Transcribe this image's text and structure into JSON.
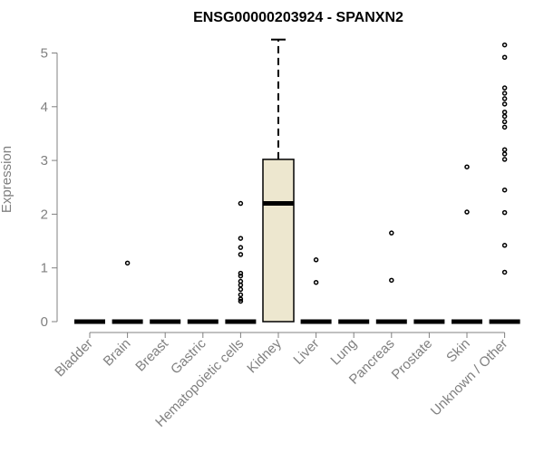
{
  "chart_data": {
    "type": "box",
    "title": "ENSG00000203924 - SPANXN2",
    "xlabel": "",
    "ylabel": "Expression",
    "ylim": [
      0,
      5.25
    ],
    "yticks": [
      "0",
      "1",
      "2",
      "3",
      "4",
      "5"
    ],
    "grid": false,
    "categories": [
      "Bladder",
      "Brain",
      "Breast",
      "Gastric",
      "Hematopoietic cells",
      "Kidney",
      "Liver",
      "Lung",
      "Pancreas",
      "Prostate",
      "Skin",
      "Unknown / Other"
    ],
    "boxes": [
      {
        "q1": 0,
        "median": 0,
        "q3": 0,
        "whisker_low": 0,
        "whisker_high": 0,
        "outliers": []
      },
      {
        "q1": 0,
        "median": 0,
        "q3": 0,
        "whisker_low": 0,
        "whisker_high": 0,
        "outliers": [
          1.09
        ]
      },
      {
        "q1": 0,
        "median": 0,
        "q3": 0,
        "whisker_low": 0,
        "whisker_high": 0,
        "outliers": []
      },
      {
        "q1": 0,
        "median": 0,
        "q3": 0,
        "whisker_low": 0,
        "whisker_high": 0,
        "outliers": []
      },
      {
        "q1": 0,
        "median": 0,
        "q3": 0,
        "whisker_low": 0,
        "whisker_high": 0,
        "outliers": [
          2.2,
          1.55,
          1.38,
          1.25,
          0.9,
          0.85,
          0.75,
          0.68,
          0.6,
          0.5,
          0.42,
          0.38
        ]
      },
      {
        "q1": 0,
        "median": 2.2,
        "q3": 3.02,
        "whisker_low": 0,
        "whisker_high": 5.25,
        "outliers": []
      },
      {
        "q1": 0,
        "median": 0,
        "q3": 0,
        "whisker_low": 0,
        "whisker_high": 0,
        "outliers": [
          1.15,
          0.73
        ]
      },
      {
        "q1": 0,
        "median": 0,
        "q3": 0,
        "whisker_low": 0,
        "whisker_high": 0,
        "outliers": []
      },
      {
        "q1": 0,
        "median": 0,
        "q3": 0,
        "whisker_low": 0,
        "whisker_high": 0,
        "outliers": [
          1.65,
          0.77
        ]
      },
      {
        "q1": 0,
        "median": 0,
        "q3": 0,
        "whisker_low": 0,
        "whisker_high": 0,
        "outliers": []
      },
      {
        "q1": 0,
        "median": 0,
        "q3": 0,
        "whisker_low": 0,
        "whisker_high": 0,
        "outliers": [
          2.88,
          2.04
        ]
      },
      {
        "q1": 0,
        "median": 0,
        "q3": 0,
        "whisker_low": 0,
        "whisker_high": 0,
        "outliers": [
          5.15,
          4.92,
          4.35,
          4.25,
          4.15,
          4.05,
          3.9,
          3.82,
          3.72,
          3.62,
          3.2,
          3.12,
          3.02,
          2.45,
          2.03,
          1.42,
          0.92
        ]
      }
    ],
    "colors": {
      "box_fill": "#ede7cf",
      "box_stroke": "#000000",
      "median": "#000000",
      "axis": "#808080",
      "tick_label": "#808080",
      "title": "#000000"
    }
  }
}
